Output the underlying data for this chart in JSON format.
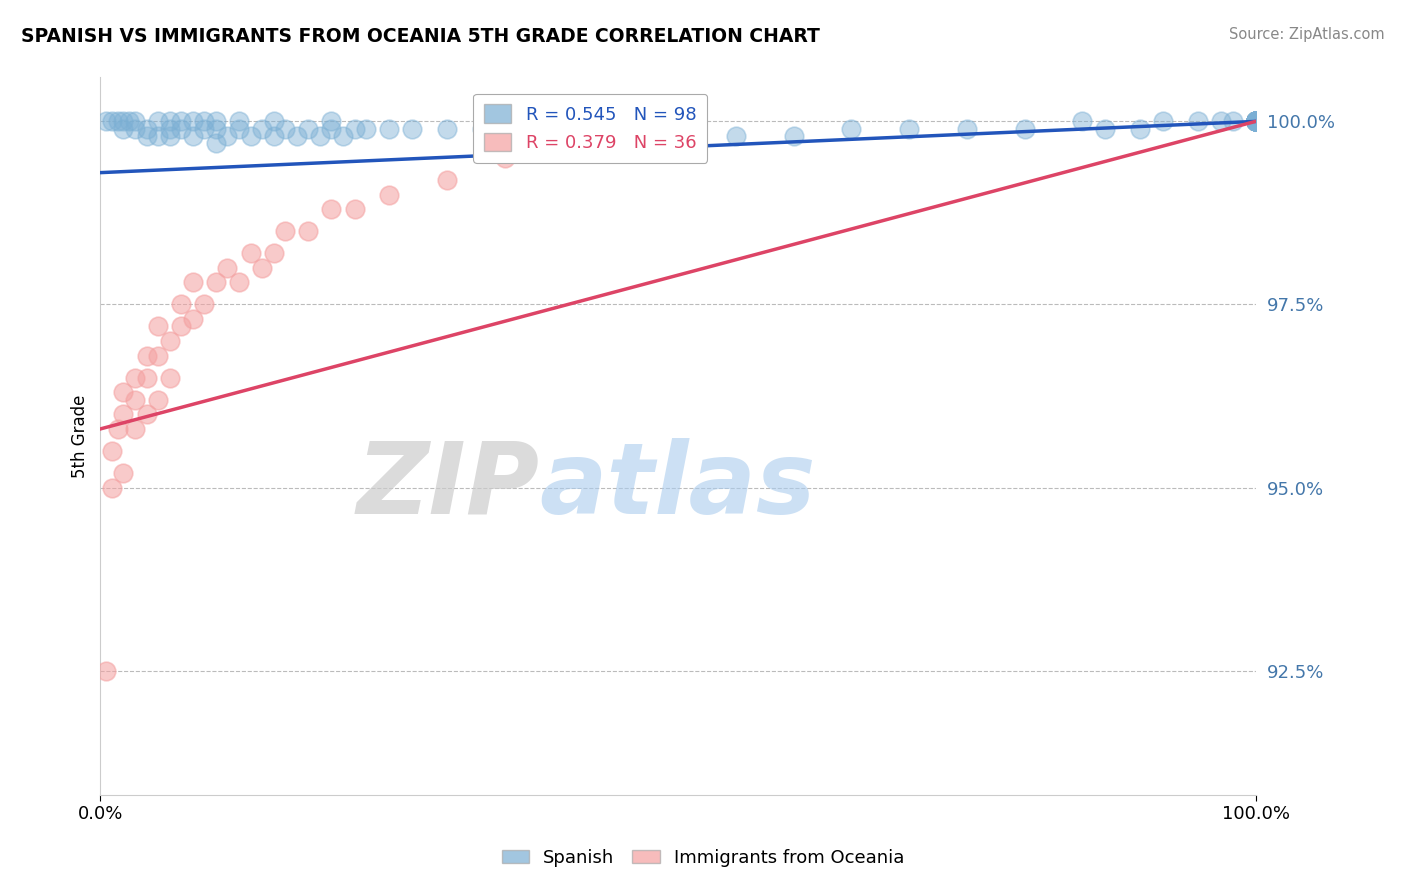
{
  "title": "SPANISH VS IMMIGRANTS FROM OCEANIA 5TH GRADE CORRELATION CHART",
  "source": "Source: ZipAtlas.com",
  "ylabel": "5th Grade",
  "ytick_labels": [
    "100.0%",
    "97.5%",
    "95.0%",
    "92.5%"
  ],
  "ytick_values": [
    1.0,
    0.975,
    0.95,
    0.925
  ],
  "xlim": [
    0.0,
    1.0
  ],
  "ylim": [
    0.908,
    1.006
  ],
  "legend_blue_label": "Spanish",
  "legend_pink_label": "Immigrants from Oceania",
  "R_blue": 0.545,
  "N_blue": 98,
  "R_pink": 0.379,
  "N_pink": 36,
  "blue_color": "#7BAFD4",
  "pink_color": "#F4A0A0",
  "blue_line_color": "#2255BB",
  "pink_line_color": "#DD4466",
  "watermark_zip": "ZIP",
  "watermark_atlas": "atlas",
  "blue_scatter_x": [
    0.005,
    0.01,
    0.015,
    0.02,
    0.02,
    0.025,
    0.03,
    0.03,
    0.04,
    0.04,
    0.05,
    0.05,
    0.06,
    0.06,
    0.06,
    0.07,
    0.07,
    0.08,
    0.08,
    0.09,
    0.09,
    0.1,
    0.1,
    0.1,
    0.11,
    0.12,
    0.12,
    0.13,
    0.14,
    0.15,
    0.15,
    0.16,
    0.17,
    0.18,
    0.19,
    0.2,
    0.2,
    0.21,
    0.22,
    0.23,
    0.25,
    0.27,
    0.3,
    0.33,
    0.35,
    0.4,
    0.42,
    0.45,
    0.5,
    0.55,
    0.6,
    0.65,
    0.7,
    0.75,
    0.8,
    0.85,
    0.87,
    0.9,
    0.92,
    0.95,
    0.97,
    0.98,
    1.0,
    1.0,
    1.0,
    1.0,
    1.0,
    1.0,
    1.0,
    1.0,
    1.0,
    1.0,
    1.0,
    1.0,
    1.0,
    1.0,
    1.0,
    1.0,
    1.0,
    1.0,
    1.0,
    1.0,
    1.0,
    1.0,
    1.0,
    1.0,
    1.0,
    1.0,
    1.0,
    1.0,
    1.0,
    1.0,
    1.0,
    1.0,
    1.0,
    1.0,
    1.0,
    1.0
  ],
  "blue_scatter_y": [
    1.0,
    1.0,
    1.0,
    0.999,
    1.0,
    1.0,
    0.999,
    1.0,
    0.998,
    0.999,
    0.998,
    1.0,
    0.998,
    0.999,
    1.0,
    0.999,
    1.0,
    0.998,
    1.0,
    0.999,
    1.0,
    0.997,
    0.999,
    1.0,
    0.998,
    0.999,
    1.0,
    0.998,
    0.999,
    0.998,
    1.0,
    0.999,
    0.998,
    0.999,
    0.998,
    0.999,
    1.0,
    0.998,
    0.999,
    0.999,
    0.999,
    0.999,
    0.999,
    0.999,
    0.998,
    0.998,
    0.999,
    0.999,
    0.999,
    0.998,
    0.998,
    0.999,
    0.999,
    0.999,
    0.999,
    1.0,
    0.999,
    0.999,
    1.0,
    1.0,
    1.0,
    1.0,
    1.0,
    1.0,
    1.0,
    1.0,
    1.0,
    1.0,
    1.0,
    1.0,
    1.0,
    1.0,
    1.0,
    1.0,
    1.0,
    1.0,
    1.0,
    1.0,
    1.0,
    1.0,
    1.0,
    1.0,
    1.0,
    1.0,
    1.0,
    1.0,
    1.0,
    1.0,
    1.0,
    1.0,
    1.0,
    1.0,
    1.0,
    1.0,
    1.0,
    1.0,
    1.0,
    1.0
  ],
  "pink_scatter_x": [
    0.005,
    0.01,
    0.01,
    0.015,
    0.02,
    0.02,
    0.03,
    0.03,
    0.04,
    0.04,
    0.05,
    0.05,
    0.06,
    0.07,
    0.07,
    0.08,
    0.08,
    0.09,
    0.1,
    0.11,
    0.12,
    0.13,
    0.14,
    0.15,
    0.16,
    0.18,
    0.2,
    0.22,
    0.25,
    0.3,
    0.35,
    0.02,
    0.03,
    0.04,
    0.05,
    0.06
  ],
  "pink_scatter_y": [
    0.925,
    0.95,
    0.955,
    0.958,
    0.96,
    0.963,
    0.965,
    0.962,
    0.965,
    0.968,
    0.968,
    0.972,
    0.97,
    0.972,
    0.975,
    0.973,
    0.978,
    0.975,
    0.978,
    0.98,
    0.978,
    0.982,
    0.98,
    0.982,
    0.985,
    0.985,
    0.988,
    0.988,
    0.99,
    0.992,
    0.995,
    0.952,
    0.958,
    0.96,
    0.962,
    0.965
  ],
  "blue_trendline_x": [
    0.0,
    1.0
  ],
  "blue_trendline_y": [
    0.993,
    1.0
  ],
  "pink_trendline_x": [
    0.0,
    1.0
  ],
  "pink_trendline_y": [
    0.958,
    1.0
  ]
}
